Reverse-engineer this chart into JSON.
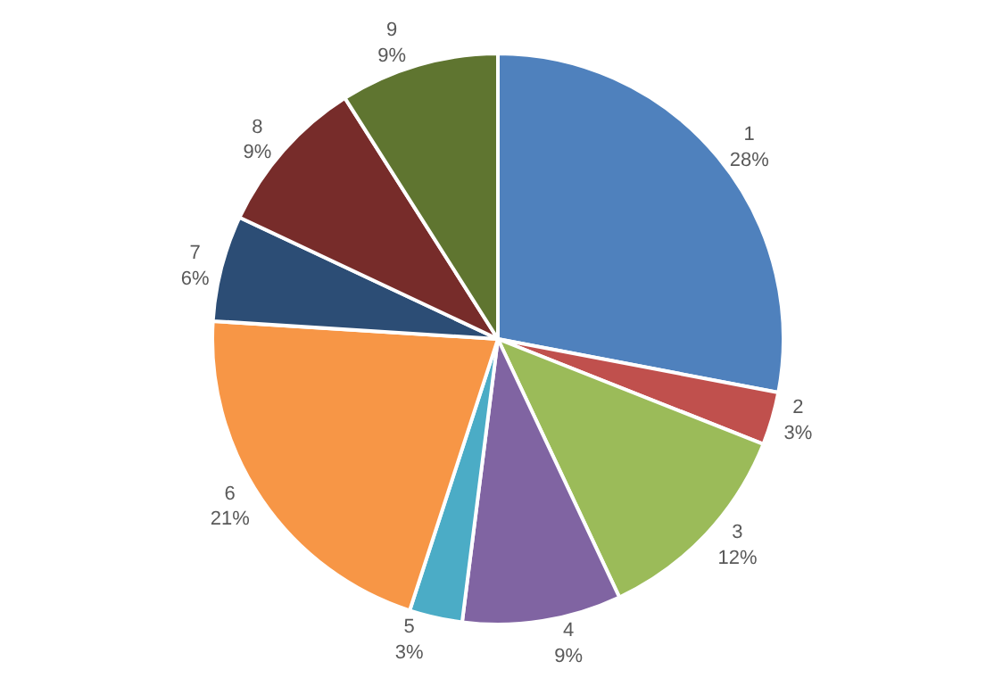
{
  "chart_data": {
    "type": "pie",
    "categories": [
      "1",
      "2",
      "3",
      "4",
      "5",
      "6",
      "7",
      "8",
      "9"
    ],
    "values": [
      28,
      3,
      12,
      9,
      3,
      21,
      6,
      9,
      9
    ],
    "value_labels": [
      "28%",
      "3%",
      "12%",
      "9%",
      "3%",
      "21%",
      "6%",
      "9%",
      "9%"
    ],
    "colors": [
      "#4f81bd",
      "#c0504d",
      "#9bbb59",
      "#8064a2",
      "#4bacc6",
      "#f79646",
      "#2c4d75",
      "#772c2a",
      "#5f7530"
    ],
    "legend": false
  }
}
